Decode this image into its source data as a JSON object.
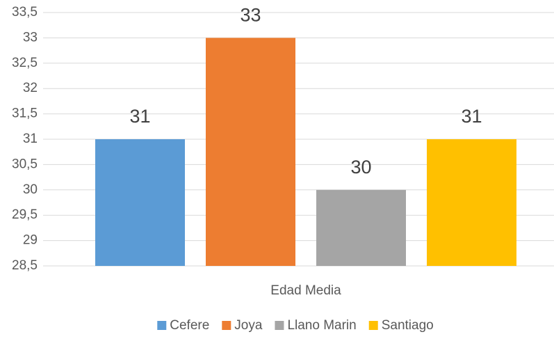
{
  "chart_data": {
    "type": "bar",
    "categories": [
      "Edad Media"
    ],
    "series": [
      {
        "name": "Cefere",
        "color": "#5b9bd5",
        "values": [
          31
        ]
      },
      {
        "name": "Joya",
        "color": "#ed7d31",
        "values": [
          33
        ]
      },
      {
        "name": "Llano Marin",
        "color": "#a5a5a5",
        "values": [
          30
        ]
      },
      {
        "name": "Santiago",
        "color": "#ffc000",
        "values": [
          31
        ]
      }
    ],
    "ylim": [
      28.5,
      33.5
    ],
    "yticks": [
      {
        "value": 28.5,
        "label": "28,5"
      },
      29,
      {
        "value": 29.5,
        "label": "29,5"
      },
      30,
      {
        "value": 30.5,
        "label": "30,5"
      },
      31,
      {
        "value": 31.5,
        "label": "31,5"
      },
      32,
      {
        "value": 32.5,
        "label": "32,5"
      },
      33,
      {
        "value": 33.5,
        "label": "33,5"
      }
    ],
    "grid": true,
    "legend": "bottom"
  }
}
